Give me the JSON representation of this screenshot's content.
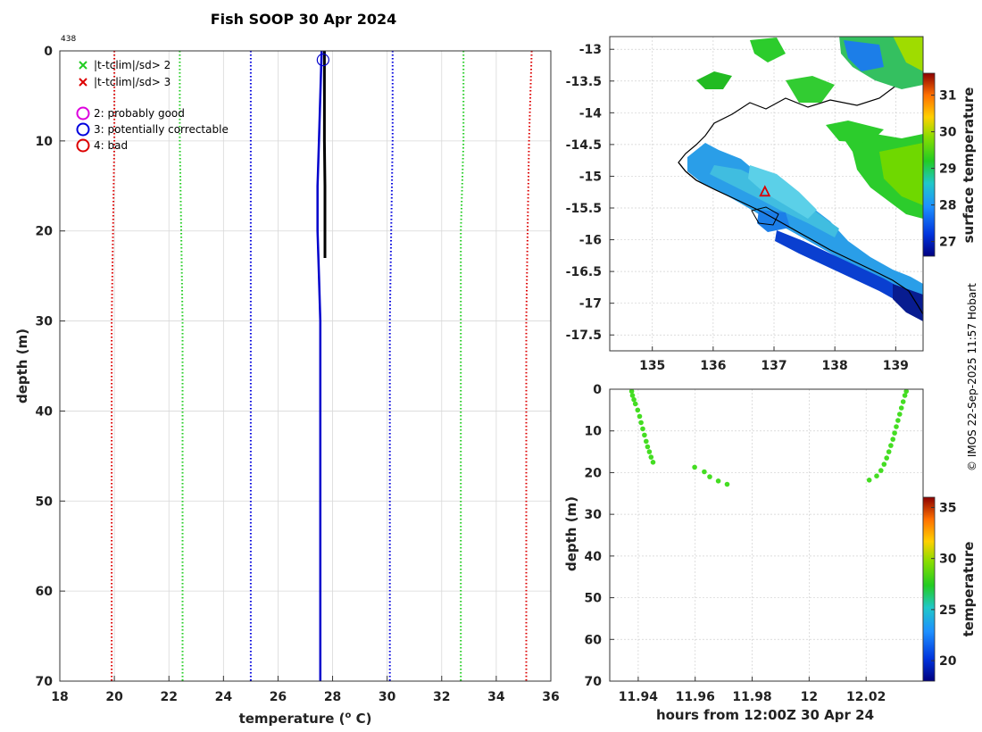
{
  "figure": {
    "title": "Fish SOOP 30 Apr 2024",
    "corner_id": "438",
    "credit": "© IMOS 22-Sep-2025 11:57 Hobart"
  },
  "chart_data": [
    {
      "type": "line",
      "name": "profile",
      "xlabel": "temperature (° C)",
      "ylabel": "depth (m)",
      "xlim": [
        18,
        36
      ],
      "ylim": [
        0,
        70
      ],
      "y_reversed": true,
      "xticks": [
        "18",
        "20",
        "22",
        "24",
        "26",
        "28",
        "30",
        "32",
        "34",
        "36"
      ],
      "yticks": [
        "0",
        "10",
        "20",
        "30",
        "40",
        "50",
        "60",
        "70"
      ],
      "grid": true,
      "legend": {
        "position": "top-left",
        "entries": [
          {
            "label": "|t-tclim|/sd> 2",
            "marker": "x",
            "color": "#22cc22"
          },
          {
            "label": "|t-tclim|/sd> 3",
            "marker": "x",
            "color": "#dd0000"
          },
          {
            "label": "2: probably good",
            "marker": "o",
            "color": "#dd00dd"
          },
          {
            "label": "3: potentially correctable",
            "marker": "o",
            "color": "#0000dd"
          },
          {
            "label": "4: bad",
            "marker": "o",
            "color": "#dd0000"
          }
        ]
      },
      "series": [
        {
          "name": "clim -3sd",
          "style": "dotted",
          "color": "#dd0000",
          "points": [
            [
              20.0,
              0
            ],
            [
              20.0,
              10
            ],
            [
              19.95,
              20
            ],
            [
              19.9,
              30
            ],
            [
              19.9,
              40
            ],
            [
              19.9,
              50
            ],
            [
              19.9,
              60
            ],
            [
              19.9,
              70
            ]
          ]
        },
        {
          "name": "clim -2sd",
          "style": "dotted",
          "color": "#22cc22",
          "points": [
            [
              22.4,
              0
            ],
            [
              22.4,
              10
            ],
            [
              22.45,
              20
            ],
            [
              22.5,
              30
            ],
            [
              22.5,
              40
            ],
            [
              22.5,
              50
            ],
            [
              22.5,
              60
            ],
            [
              22.5,
              70
            ]
          ]
        },
        {
          "name": "clim mean",
          "style": "dotted",
          "color": "#0000dd",
          "points": [
            [
              25.0,
              0
            ],
            [
              25.0,
              10
            ],
            [
              25.0,
              20
            ],
            [
              25.0,
              30
            ],
            [
              25.0,
              40
            ],
            [
              25.0,
              50
            ],
            [
              25.0,
              60
            ],
            [
              25.0,
              70
            ]
          ]
        },
        {
          "name": "clim +1sd",
          "style": "dotted",
          "color": "#0000dd",
          "points": [
            [
              30.2,
              0
            ],
            [
              30.2,
              10
            ],
            [
              30.15,
              20
            ],
            [
              30.1,
              30
            ],
            [
              30.1,
              40
            ],
            [
              30.1,
              50
            ],
            [
              30.1,
              60
            ],
            [
              30.1,
              70
            ]
          ]
        },
        {
          "name": "clim +2sd",
          "style": "dotted",
          "color": "#22cc22",
          "points": [
            [
              32.8,
              0
            ],
            [
              32.8,
              10
            ],
            [
              32.7,
              20
            ],
            [
              32.7,
              30
            ],
            [
              32.7,
              40
            ],
            [
              32.7,
              50
            ],
            [
              32.7,
              60
            ],
            [
              32.7,
              70
            ]
          ]
        },
        {
          "name": "clim +3sd",
          "style": "dotted",
          "color": "#dd0000",
          "points": [
            [
              35.3,
              0
            ],
            [
              35.25,
              5
            ],
            [
              35.2,
              10
            ],
            [
              35.15,
              20
            ],
            [
              35.1,
              30
            ],
            [
              35.1,
              40
            ],
            [
              35.1,
              50
            ],
            [
              35.1,
              60
            ],
            [
              35.1,
              70
            ]
          ]
        },
        {
          "name": "climatology profile",
          "style": "solid",
          "color": "#0000cc",
          "points": [
            [
              27.6,
              0
            ],
            [
              27.55,
              5
            ],
            [
              27.5,
              10
            ],
            [
              27.45,
              15
            ],
            [
              27.45,
              20
            ],
            [
              27.5,
              25
            ],
            [
              27.55,
              30
            ],
            [
              27.55,
              40
            ],
            [
              27.55,
              50
            ],
            [
              27.55,
              60
            ],
            [
              27.55,
              70
            ]
          ]
        },
        {
          "name": "observed profile",
          "style": "solid",
          "color": "#000000",
          "points": [
            [
              27.7,
              0
            ],
            [
              27.7,
              5
            ],
            [
              27.7,
              10
            ],
            [
              27.72,
              15
            ],
            [
              27.72,
              20
            ],
            [
              27.72,
              23
            ]
          ]
        }
      ],
      "flag_marker": {
        "x": 27.65,
        "y": 1,
        "color": "#0000cc",
        "shape": "circle"
      }
    },
    {
      "type": "heatmap",
      "name": "map",
      "xlim": [
        134.3,
        139.45
      ],
      "ylim": [
        -17.75,
        -12.8
      ],
      "xticks": [
        "135",
        "136",
        "137",
        "138",
        "139"
      ],
      "yticks": [
        "-13",
        "-13.5",
        "-14",
        "-14.5",
        "-15",
        "-15.5",
        "-16",
        "-16.5",
        "-17",
        "-17.5"
      ],
      "colorbar": {
        "label": "surface temperature",
        "range": [
          26.6,
          31.6
        ],
        "ticks": [
          "27",
          "28",
          "29",
          "30",
          "31"
        ]
      },
      "location_marker": {
        "lon": 136.85,
        "lat": -15.25,
        "shape": "triangle",
        "color": "#dd0000"
      }
    },
    {
      "type": "scatter",
      "name": "time-depth",
      "xlabel": "hours from 12:00Z 30 Apr 24",
      "ylabel": "depth (m)",
      "xlim": [
        11.93,
        12.04
      ],
      "ylim": [
        0,
        70
      ],
      "y_reversed": true,
      "xticks": [
        "11.94",
        "11.96",
        "11.98",
        "12",
        "12.02"
      ],
      "yticks": [
        "0",
        "10",
        "20",
        "30",
        "40",
        "50",
        "60",
        "70"
      ],
      "colorbar": {
        "label": "temperature",
        "range": [
          18,
          36
        ],
        "ticks": [
          "20",
          "25",
          "30",
          "35"
        ]
      },
      "point_color": "#44dd22",
      "points": [
        [
          11.9377,
          0.5
        ],
        [
          11.938,
          1.5
        ],
        [
          11.9385,
          2.5
        ],
        [
          11.939,
          3.5
        ],
        [
          11.9398,
          5
        ],
        [
          11.9405,
          6.5
        ],
        [
          11.941,
          8
        ],
        [
          11.9416,
          9.5
        ],
        [
          11.9422,
          11
        ],
        [
          11.9428,
          12.5
        ],
        [
          11.9433,
          13.8
        ],
        [
          11.9439,
          15
        ],
        [
          11.9445,
          16.3
        ],
        [
          11.9452,
          17.5
        ],
        [
          11.9598,
          18.7
        ],
        [
          11.9632,
          19.8
        ],
        [
          11.9651,
          21
        ],
        [
          11.9681,
          22
        ],
        [
          11.9712,
          22.8
        ],
        [
          12.0211,
          21.8
        ],
        [
          12.0237,
          20.8
        ],
        [
          12.0252,
          19.5
        ],
        [
          12.0263,
          18
        ],
        [
          12.0272,
          16.5
        ],
        [
          12.028,
          15
        ],
        [
          12.0287,
          13.5
        ],
        [
          12.0294,
          12
        ],
        [
          12.03,
          10.5
        ],
        [
          12.0306,
          9
        ],
        [
          12.0312,
          7.5
        ],
        [
          12.0318,
          6
        ],
        [
          12.0324,
          4.5
        ],
        [
          12.033,
          3
        ],
        [
          12.0336,
          1.5
        ],
        [
          12.0341,
          0.5
        ]
      ]
    }
  ]
}
